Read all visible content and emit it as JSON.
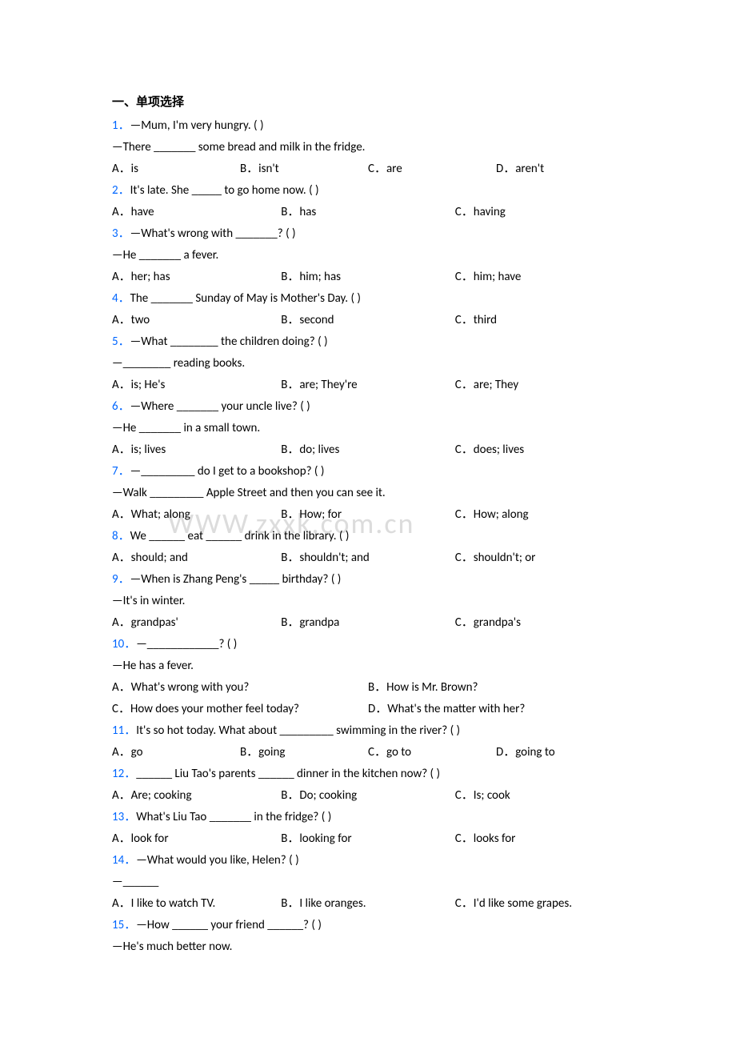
{
  "section_title": "一、单项选择",
  "watermark": "WWW.zxxk.com.cn",
  "questions": [
    {
      "num": "1．",
      "lines": [
        "—Mum, I'm very hungry. (   )",
        "—There _______ some bread and milk in the fridge."
      ],
      "opts": [
        "A．is",
        "B．isn't",
        "C．are",
        "D．aren't"
      ],
      "layout": "opts4"
    },
    {
      "num": "2．",
      "lines": [
        "It's late. She _____ to go home now. (    )"
      ],
      "opts": [
        "A．have",
        "B．has",
        "C．having"
      ],
      "layout": "opts3"
    },
    {
      "num": "3．",
      "lines": [
        "—What's wrong with _______? (   )",
        "—He _______ a fever."
      ],
      "opts": [
        "A．her; has",
        "B．him; has",
        "C．him; have"
      ],
      "layout": "opts3"
    },
    {
      "num": "4．",
      "lines": [
        "The _______ Sunday of May is Mother's Day. (   )"
      ],
      "opts": [
        "A．two",
        "B．second",
        "C．third"
      ],
      "layout": "opts3"
    },
    {
      "num": "5．",
      "lines": [
        "—What ________ the children doing? (    )",
        "—________ reading books."
      ],
      "opts": [
        "A．is; He's",
        "B．are; They're",
        "C．are; They"
      ],
      "layout": "opts3"
    },
    {
      "num": "6．",
      "lines": [
        "—Where _______ your uncle live? (    )",
        "—He _______ in a small town."
      ],
      "opts": [
        "A．is; lives",
        "B．do; lives",
        "C．does; lives"
      ],
      "layout": "opts3"
    },
    {
      "num": "7．",
      "lines": [
        "—_________ do I get to a bookshop? (   )",
        "—Walk _________ Apple Street and then you can see it."
      ],
      "opts": [
        "A．What; along",
        "B．How; for",
        "C．How; along"
      ],
      "layout": "opts3"
    },
    {
      "num": "8．",
      "lines": [
        "We ______ eat ______ drink in the library. (   )"
      ],
      "opts": [
        "A．should; and",
        "B．shouldn't; and",
        "C．shouldn't; or"
      ],
      "layout": "opts3"
    },
    {
      "num": "9．",
      "lines": [
        "—When is Zhang Peng's _____ birthday? (    )",
        "—It's in winter."
      ],
      "opts": [
        "A．grandpas'",
        "B．grandpa",
        "C．grandpa's"
      ],
      "layout": "opts3"
    },
    {
      "num": "10．",
      "lines": [
        "—____________? (     )",
        "—He has a fever."
      ],
      "opts": [
        "A．What's wrong with you?",
        "B．How is Mr. Brown?",
        "C．How does your mother feel today?",
        "D．What's the matter with her?"
      ],
      "layout": "opts2x2"
    },
    {
      "num": "11．",
      "lines": [
        "It's so hot today. What about _________ swimming in the river? (   )"
      ],
      "opts": [
        "A．go",
        "B．going",
        "C．go to",
        "D．going to"
      ],
      "layout": "opts4"
    },
    {
      "num": "12．",
      "lines": [
        "______ Liu Tao's parents ______ dinner in the kitchen now? (   )"
      ],
      "opts": [
        "A．Are; cooking",
        "B．Do; cooking",
        "C．Is; cook"
      ],
      "layout": "opts3"
    },
    {
      "num": "13．",
      "lines": [
        "What's Liu Tao _______ in the fridge? (   )"
      ],
      "opts": [
        "A．look for",
        "B．looking for",
        "C．looks for"
      ],
      "layout": "opts3"
    },
    {
      "num": "14．",
      "lines": [
        "—What would you like, Helen? (    )",
        "—______"
      ],
      "opts": [
        "A．I like to watch TV.",
        "B．I like oranges.",
        "C．I'd like some grapes."
      ],
      "layout": "opts3"
    },
    {
      "num": "15．",
      "lines": [
        "—How ______ your friend ______? (   )",
        "—He's much better now."
      ],
      "opts": [],
      "layout": "none"
    }
  ]
}
